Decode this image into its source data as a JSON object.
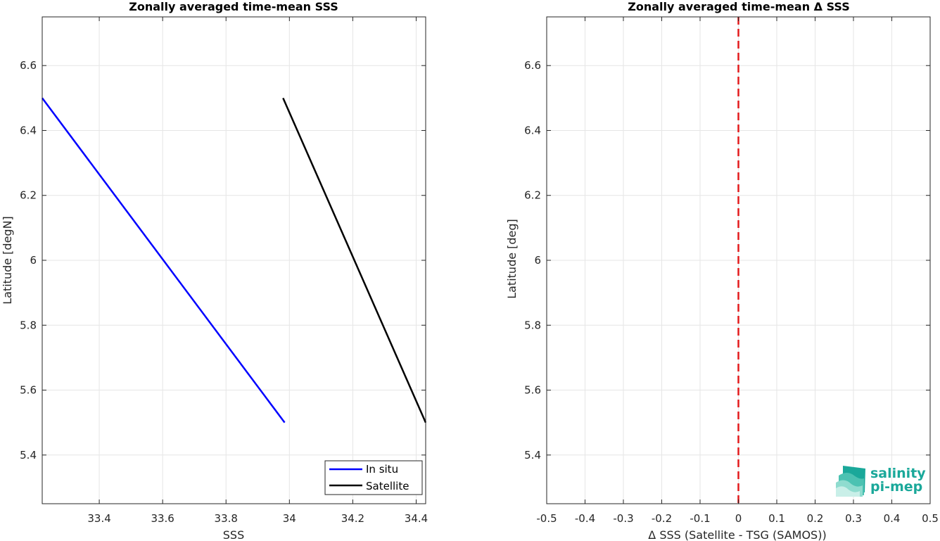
{
  "chart_data": [
    {
      "type": "line",
      "title": "Zonally averaged time-mean SSS",
      "xlabel": "SSS",
      "ylabel": "Latitude [degN]",
      "xlim": [
        33.22,
        34.43
      ],
      "ylim": [
        5.25,
        6.75
      ],
      "xticks": [
        33.4,
        33.6,
        33.8,
        34,
        34.2,
        34.4
      ],
      "xtick_labels": [
        "33.4",
        "33.6",
        "33.8",
        "34",
        "34.2",
        "34.4"
      ],
      "yticks": [
        5.4,
        5.6,
        5.8,
        6,
        6.2,
        6.4,
        6.6
      ],
      "ytick_labels": [
        "5.4",
        "5.6",
        "5.8",
        "6",
        "6.2",
        "6.4",
        "6.6"
      ],
      "grid": true,
      "legend_position": "bottom-right",
      "series": [
        {
          "name": "In situ",
          "color": "#0000ff",
          "x": [
            33.22,
            33.985
          ],
          "y": [
            6.5,
            5.5
          ]
        },
        {
          "name": "Satellite",
          "color": "#000000",
          "x": [
            33.98,
            34.43
          ],
          "y": [
            6.5,
            5.5
          ]
        }
      ]
    },
    {
      "type": "line",
      "title": "Zonally averaged time-mean Δ SSS",
      "xlabel": "Δ SSS (Satellite - TSG (SAMOS))",
      "ylabel": "Latitude [deg]",
      "xlim": [
        -0.5,
        0.5
      ],
      "ylim": [
        5.25,
        6.75
      ],
      "xticks": [
        -0.5,
        -0.4,
        -0.3,
        -0.2,
        -0.1,
        0,
        0.1,
        0.2,
        0.3,
        0.4,
        0.5
      ],
      "xtick_labels": [
        "-0.5",
        "-0.4",
        "-0.3",
        "-0.2",
        "-0.1",
        "0",
        "0.1",
        "0.2",
        "0.3",
        "0.4",
        "0.5"
      ],
      "yticks": [
        5.4,
        5.6,
        5.8,
        6,
        6.2,
        6.4,
        6.6
      ],
      "ytick_labels": [
        "5.4",
        "5.6",
        "5.8",
        "6",
        "6.2",
        "6.4",
        "6.6"
      ],
      "grid": true,
      "reference_line": {
        "x": 0,
        "color": "#e31a1c",
        "style": "dashed"
      }
    }
  ],
  "logo": {
    "line1": "salinity",
    "line2": "pi-mep",
    "color": "#1aa89a"
  }
}
